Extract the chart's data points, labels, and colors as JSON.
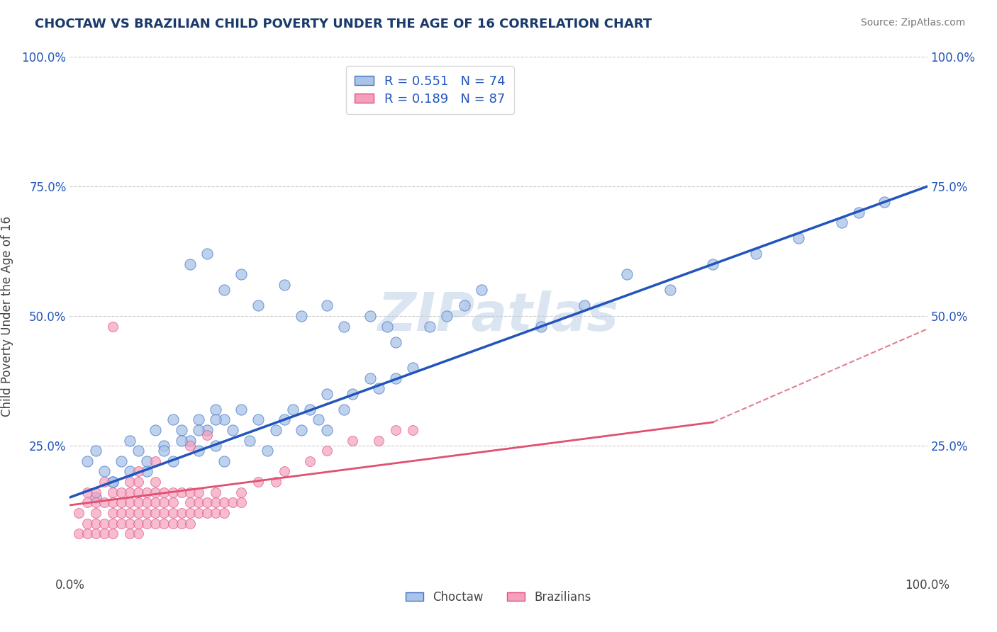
{
  "title": "CHOCTAW VS BRAZILIAN CHILD POVERTY UNDER THE AGE OF 16 CORRELATION CHART",
  "source": "Source: ZipAtlas.com",
  "ylabel": "Child Poverty Under the Age of 16",
  "xlim": [
    0.0,
    1.0
  ],
  "ylim": [
    0.0,
    1.0
  ],
  "watermark": "ZIPatlas",
  "legend_r1": "R = 0.551",
  "legend_n1": "N = 74",
  "legend_r2": "R = 0.189",
  "legend_n2": "N = 87",
  "choctaw_color": "#aac4e8",
  "brazilian_color": "#f4a0bc",
  "choctaw_edge": "#4472c4",
  "brazilian_edge": "#e05080",
  "choctaw_line_color": "#2255bb",
  "brazilian_solid_color": "#e05070",
  "brazilian_dash_color": "#e08090",
  "title_color": "#1a3a6b",
  "source_color": "#777777",
  "background_color": "#ffffff",
  "grid_color": "#cccccc",
  "choctaw_line": {
    "x0": 0.0,
    "y0": 0.15,
    "x1": 1.0,
    "y1": 0.75
  },
  "brazilian_solid_line": {
    "x0": 0.0,
    "y0": 0.135,
    "x1": 0.75,
    "y1": 0.295
  },
  "brazilian_dash_line": {
    "x0": 0.0,
    "y0": 0.135,
    "x1": 1.0,
    "y1": 0.475
  },
  "choctaw_x": [
    0.02,
    0.03,
    0.04,
    0.05,
    0.06,
    0.07,
    0.08,
    0.09,
    0.1,
    0.11,
    0.12,
    0.12,
    0.13,
    0.14,
    0.15,
    0.15,
    0.16,
    0.17,
    0.17,
    0.18,
    0.18,
    0.19,
    0.2,
    0.21,
    0.22,
    0.23,
    0.24,
    0.25,
    0.26,
    0.27,
    0.28,
    0.29,
    0.3,
    0.3,
    0.32,
    0.33,
    0.35,
    0.36,
    0.38,
    0.4,
    0.14,
    0.16,
    0.18,
    0.2,
    0.22,
    0.25,
    0.27,
    0.3,
    0.32,
    0.35,
    0.37,
    0.38,
    0.42,
    0.44,
    0.46,
    0.48,
    0.55,
    0.6,
    0.65,
    0.7,
    0.75,
    0.8,
    0.85,
    0.9,
    0.92,
    0.95,
    0.03,
    0.05,
    0.07,
    0.09,
    0.11,
    0.13,
    0.15,
    0.17
  ],
  "choctaw_y": [
    0.22,
    0.24,
    0.2,
    0.18,
    0.22,
    0.26,
    0.24,
    0.2,
    0.28,
    0.25,
    0.3,
    0.22,
    0.28,
    0.26,
    0.3,
    0.24,
    0.28,
    0.32,
    0.25,
    0.3,
    0.22,
    0.28,
    0.32,
    0.26,
    0.3,
    0.24,
    0.28,
    0.3,
    0.32,
    0.28,
    0.32,
    0.3,
    0.35,
    0.28,
    0.32,
    0.35,
    0.38,
    0.36,
    0.38,
    0.4,
    0.6,
    0.62,
    0.55,
    0.58,
    0.52,
    0.56,
    0.5,
    0.52,
    0.48,
    0.5,
    0.48,
    0.45,
    0.48,
    0.5,
    0.52,
    0.55,
    0.48,
    0.52,
    0.58,
    0.55,
    0.6,
    0.62,
    0.65,
    0.68,
    0.7,
    0.72,
    0.15,
    0.18,
    0.2,
    0.22,
    0.24,
    0.26,
    0.28,
    0.3
  ],
  "brazilian_x": [
    0.01,
    0.01,
    0.02,
    0.02,
    0.02,
    0.02,
    0.03,
    0.03,
    0.03,
    0.03,
    0.03,
    0.04,
    0.04,
    0.04,
    0.04,
    0.05,
    0.05,
    0.05,
    0.05,
    0.05,
    0.06,
    0.06,
    0.06,
    0.06,
    0.07,
    0.07,
    0.07,
    0.07,
    0.07,
    0.07,
    0.08,
    0.08,
    0.08,
    0.08,
    0.08,
    0.08,
    0.09,
    0.09,
    0.09,
    0.09,
    0.1,
    0.1,
    0.1,
    0.1,
    0.1,
    0.11,
    0.11,
    0.11,
    0.11,
    0.12,
    0.12,
    0.12,
    0.12,
    0.13,
    0.13,
    0.13,
    0.14,
    0.14,
    0.14,
    0.14,
    0.15,
    0.15,
    0.15,
    0.16,
    0.16,
    0.17,
    0.17,
    0.17,
    0.18,
    0.18,
    0.19,
    0.2,
    0.2,
    0.22,
    0.24,
    0.25,
    0.28,
    0.3,
    0.33,
    0.36,
    0.38,
    0.4,
    0.05,
    0.08,
    0.1,
    0.14,
    0.16
  ],
  "brazilian_y": [
    0.08,
    0.12,
    0.1,
    0.14,
    0.08,
    0.16,
    0.1,
    0.14,
    0.08,
    0.12,
    0.16,
    0.1,
    0.14,
    0.18,
    0.08,
    0.12,
    0.16,
    0.1,
    0.14,
    0.08,
    0.12,
    0.16,
    0.1,
    0.14,
    0.08,
    0.12,
    0.16,
    0.1,
    0.14,
    0.18,
    0.1,
    0.14,
    0.08,
    0.16,
    0.12,
    0.18,
    0.12,
    0.16,
    0.1,
    0.14,
    0.12,
    0.16,
    0.1,
    0.14,
    0.18,
    0.12,
    0.16,
    0.1,
    0.14,
    0.12,
    0.16,
    0.1,
    0.14,
    0.12,
    0.16,
    0.1,
    0.14,
    0.12,
    0.16,
    0.1,
    0.14,
    0.12,
    0.16,
    0.14,
    0.12,
    0.14,
    0.12,
    0.16,
    0.14,
    0.12,
    0.14,
    0.16,
    0.14,
    0.18,
    0.18,
    0.2,
    0.22,
    0.24,
    0.26,
    0.26,
    0.28,
    0.28,
    0.48,
    0.2,
    0.22,
    0.25,
    0.27
  ]
}
